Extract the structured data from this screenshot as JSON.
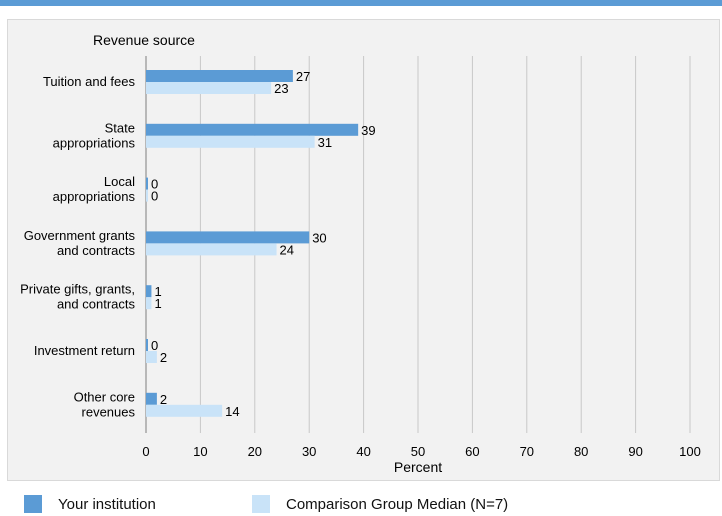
{
  "colors": {
    "series_primary": "#5b9bd5",
    "series_secondary": "#c9e3f8",
    "gridline": "#c8c8c8",
    "axis": "#7f7f7f",
    "panel_bg": "#f2f2f2",
    "top_rule": "#5b9bd5"
  },
  "chart_data": {
    "type": "bar",
    "orientation": "horizontal",
    "title": "Revenue source",
    "xlabel": "Percent",
    "ylabel": "Revenue source",
    "xlim": [
      0,
      100
    ],
    "xticks": [
      0,
      10,
      20,
      30,
      40,
      50,
      60,
      70,
      80,
      90,
      100
    ],
    "grid": true,
    "legend_position": "bottom",
    "categories": [
      [
        "Tuition and fees"
      ],
      [
        "State",
        "appropriations"
      ],
      [
        "Local",
        "appropriations"
      ],
      [
        "Government grants",
        "and contracts"
      ],
      [
        "Private gifts, grants,",
        "and contracts"
      ],
      [
        "Investment return"
      ],
      [
        "Other core",
        "revenues"
      ]
    ],
    "series": [
      {
        "name": "Your institution",
        "color": "#5b9bd5",
        "values": [
          27,
          39,
          0,
          30,
          1,
          0,
          2
        ]
      },
      {
        "name": "Comparison Group Median (N=7)",
        "color": "#c9e3f8",
        "values": [
          23,
          31,
          0,
          24,
          1,
          2,
          14
        ]
      }
    ]
  }
}
